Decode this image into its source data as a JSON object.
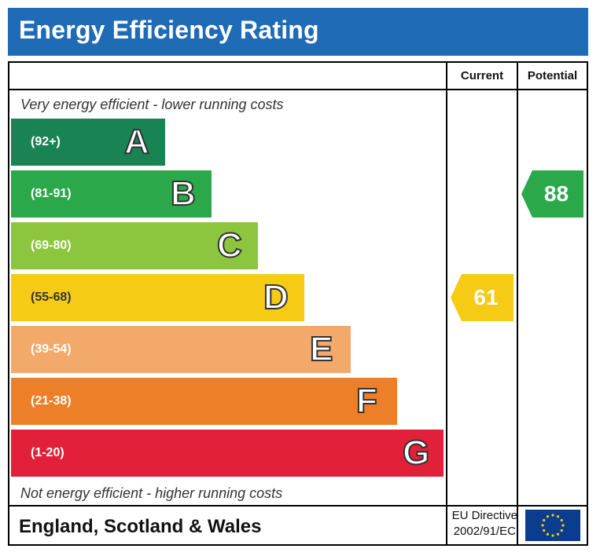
{
  "header": {
    "title": "Energy Efficiency Rating"
  },
  "columns": {
    "current": "Current",
    "potential": "Potential"
  },
  "notes": {
    "top": "Very energy efficient - lower running costs",
    "bottom": "Not energy efficient - higher running costs"
  },
  "chart_data": {
    "type": "bar",
    "title": "Energy Efficiency Rating",
    "categories": [
      "A",
      "B",
      "C",
      "D",
      "E",
      "F",
      "G"
    ],
    "ranges": [
      "(92+)",
      "(81-91)",
      "(69-80)",
      "(55-68)",
      "(39-54)",
      "(21-38)",
      "(1-20)"
    ],
    "colors": [
      "#1a8354",
      "#2ba84a",
      "#8cc63e",
      "#f5cb16",
      "#f2a96a",
      "#ec7f27",
      "#e22039"
    ],
    "current": {
      "value": 61,
      "band": "D",
      "color": "#f5cb16"
    },
    "potential": {
      "value": 88,
      "band": "B",
      "color": "#2ba84a"
    }
  },
  "footer": {
    "region": "England, Scotland & Wales",
    "directive_line1": "EU Directive",
    "directive_line2": "2002/91/EC",
    "flag_icon": "eu-flag-icon"
  }
}
